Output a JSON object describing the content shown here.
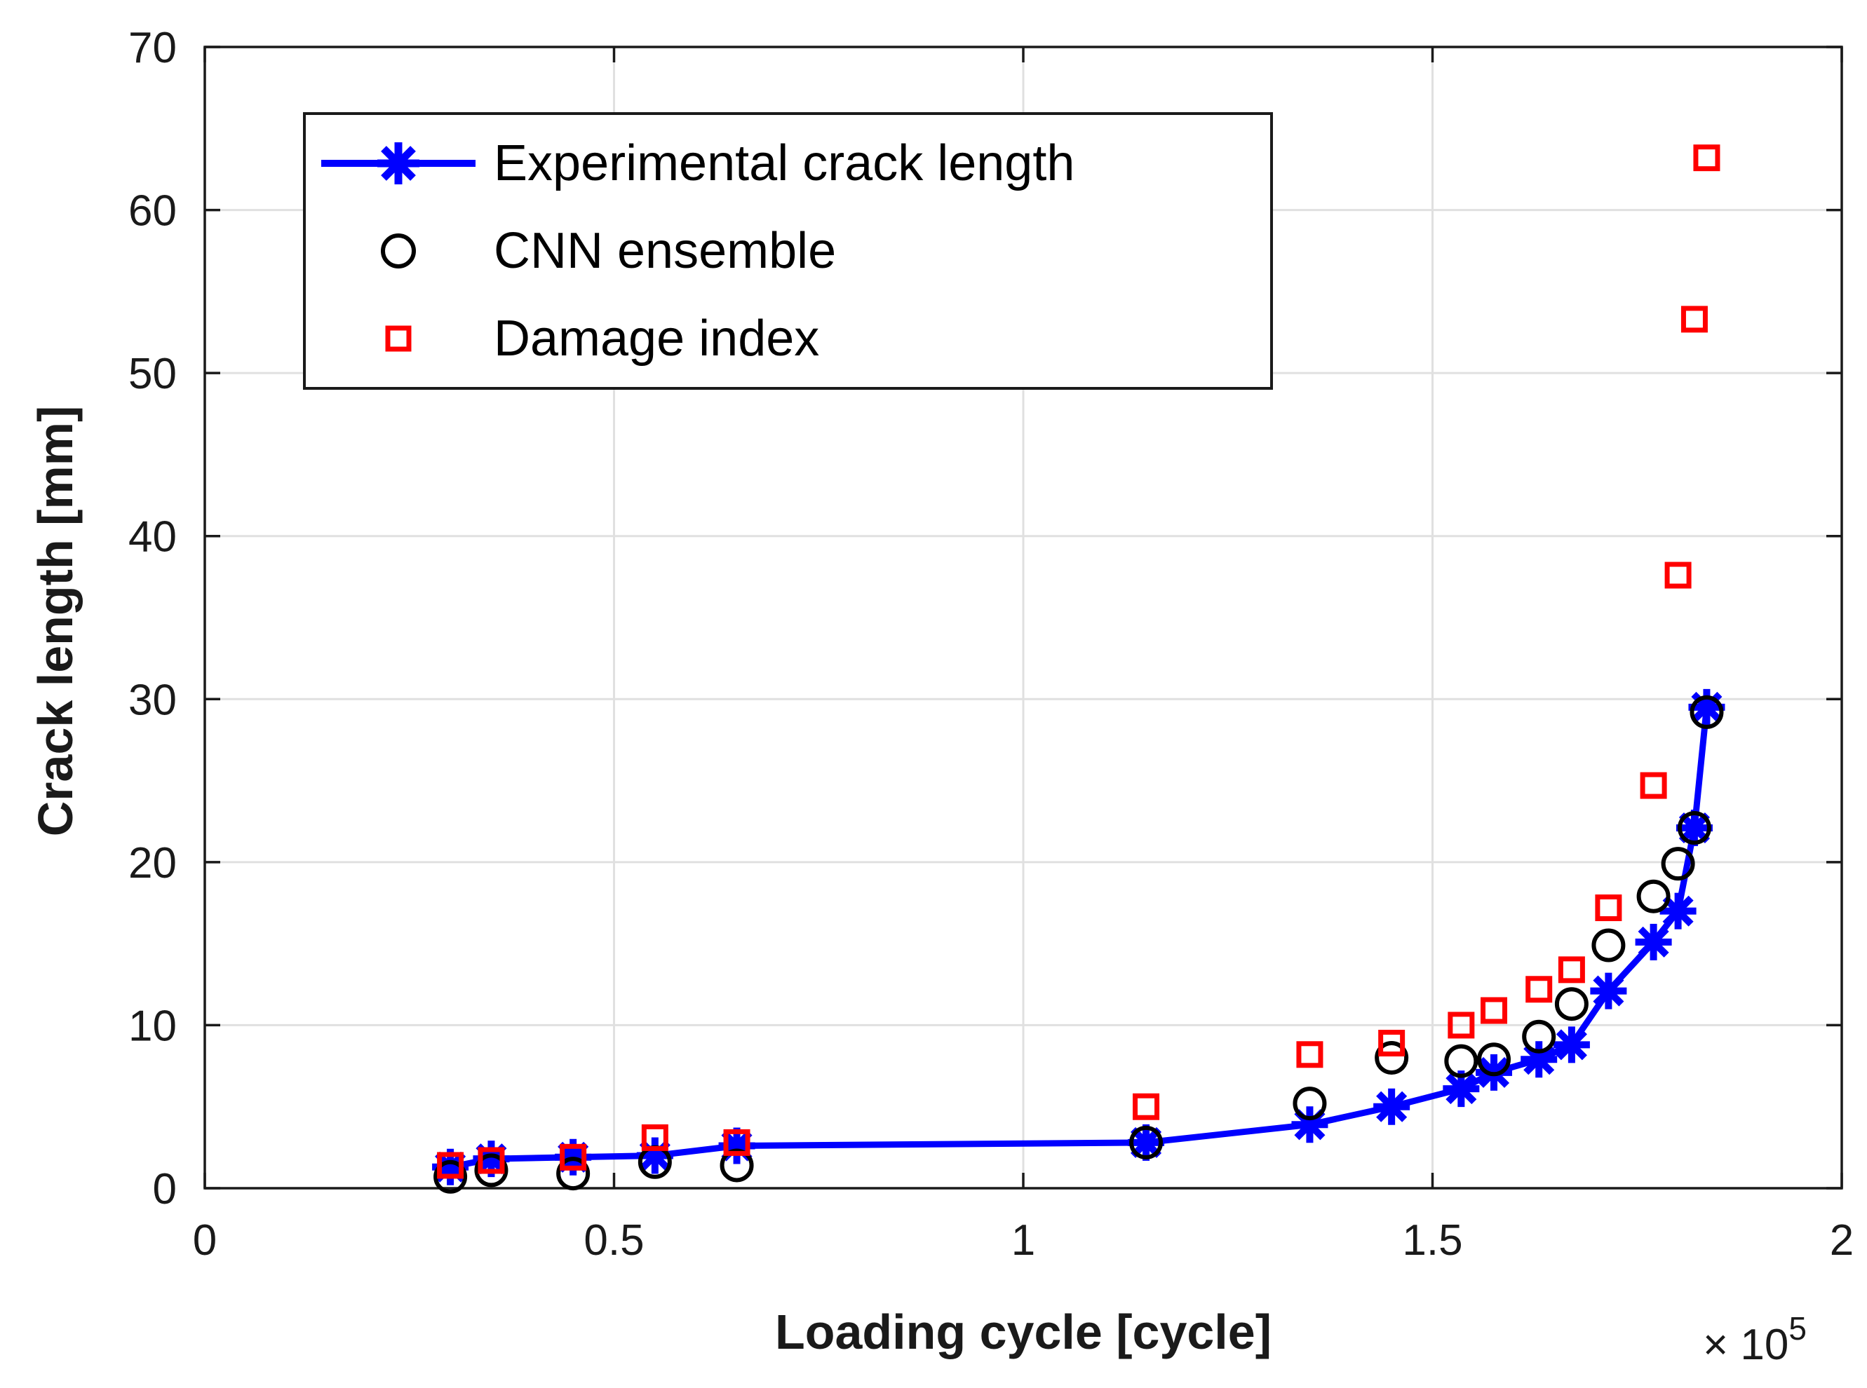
{
  "chart_data": {
    "type": "line",
    "title": "",
    "xlabel": "Loading cycle [cycle]",
    "ylabel": "Crack length [mm]",
    "x_axis_offset_text": "× 10",
    "x_axis_offset_exponent": "5",
    "xlim": [
      0,
      2
    ],
    "ylim": [
      0,
      70
    ],
    "x_ticks": [
      0,
      0.5,
      1,
      1.5,
      2
    ],
    "x_tick_labels": [
      "0",
      "0.5",
      "1",
      "1.5",
      "2"
    ],
    "y_ticks": [
      0,
      10,
      20,
      30,
      40,
      50,
      60,
      70
    ],
    "y_tick_labels": [
      "0",
      "10",
      "20",
      "30",
      "40",
      "50",
      "60",
      "70"
    ],
    "grid": true,
    "legend_position": "top-left",
    "x": [
      0.3,
      0.35,
      0.45,
      0.55,
      0.65,
      1.15,
      1.35,
      1.45,
      1.535,
      1.575,
      1.63,
      1.67,
      1.715,
      1.77,
      1.8,
      1.82,
      1.835
    ],
    "series": [
      {
        "name": "Experimental crack length",
        "draw": "line+marker",
        "marker": "asterisk",
        "color": "#0000ff",
        "values": [
          1.3,
          1.8,
          1.9,
          2.0,
          2.6,
          2.8,
          3.9,
          5.0,
          6.1,
          7.1,
          7.9,
          8.8,
          12.1,
          15.1,
          17.0,
          22.1,
          29.5
        ]
      },
      {
        "name": "CNN ensemble",
        "draw": "marker",
        "marker": "circle",
        "color": "#000000",
        "values": [
          0.7,
          1.1,
          0.9,
          1.6,
          1.4,
          2.8,
          5.2,
          8.0,
          7.8,
          7.9,
          9.3,
          11.3,
          14.9,
          17.9,
          19.9,
          22.1,
          29.2
        ]
      },
      {
        "name": "Damage index",
        "draw": "marker",
        "marker": "square",
        "color": "#ff0000",
        "values": [
          1.4,
          1.7,
          1.9,
          3.1,
          2.8,
          5.0,
          8.2,
          8.9,
          10.0,
          10.9,
          12.2,
          13.4,
          17.2,
          24.7,
          37.6,
          53.3,
          63.2
        ]
      }
    ]
  },
  "legend": {
    "entries": [
      {
        "label": "Experimental crack length"
      },
      {
        "label": "CNN ensemble"
      },
      {
        "label": "Damage index"
      }
    ]
  },
  "colors": {
    "experimental": "#0000ff",
    "cnn": "#000000",
    "damage": "#ff0000",
    "grid": "#e0e0e0",
    "axis": "#1a1a1a"
  }
}
